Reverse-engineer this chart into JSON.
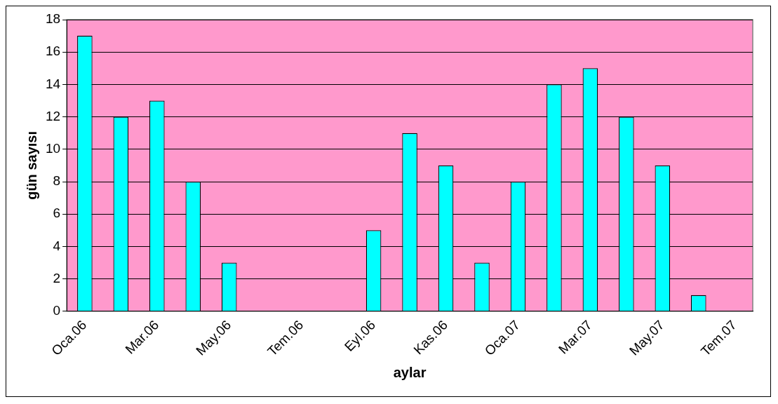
{
  "chart_data": {
    "type": "bar",
    "xlabel": "aylar",
    "ylabel": "gün sayısı",
    "categories": [
      "Oca.06",
      null,
      "Mar.06",
      null,
      "May.06",
      null,
      "Tem.06",
      null,
      "Eyl.06",
      null,
      "Kas.06",
      null,
      "Oca.07",
      null,
      "Mar.07",
      null,
      "May.07",
      null,
      "Tem.07"
    ],
    "values": [
      17,
      12,
      13,
      8,
      3,
      0,
      0,
      0,
      5,
      11,
      9,
      3,
      8,
      14,
      15,
      12,
      9,
      1,
      0
    ],
    "color": "#00ffff",
    "ylim": [
      0,
      18
    ],
    "yticks": [
      0,
      2,
      4,
      6,
      8,
      10,
      12,
      14,
      16,
      18
    ],
    "grid": "y",
    "legend": false
  }
}
